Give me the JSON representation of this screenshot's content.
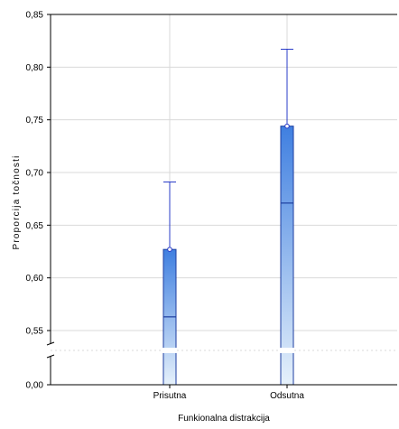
{
  "chart_data": {
    "type": "bar",
    "title": "",
    "xlabel": "Funkionalna distrakcija",
    "ylabel": "Proporcija točnosti",
    "categories": [
      "Prisutna",
      "Odsutna"
    ],
    "series": [
      {
        "values": [
          0.627,
          0.744
        ],
        "lower_inner": [
          0.563,
          0.671
        ],
        "upper_whisker": [
          0.691,
          0.817
        ]
      }
    ],
    "y_ticks_upper": [
      "0,55",
      "0,60",
      "0,65",
      "0,70",
      "0,75",
      "0,80",
      "0,85"
    ],
    "y_ticks_upper_values": [
      0.55,
      0.6,
      0.65,
      0.7,
      0.75,
      0.8,
      0.85
    ],
    "y_tick_bottom": "0,00",
    "ylim": [
      0.0,
      0.85
    ],
    "axis_break": true,
    "grid": true,
    "colors": {
      "bar_top": "#3f7fe0",
      "bar_bottom": "#e6f1fb",
      "bar_stroke": "#1d3ea0",
      "whisker": "#2a3cc8",
      "grid": "#d9d9d9",
      "axis": "#000000"
    }
  }
}
